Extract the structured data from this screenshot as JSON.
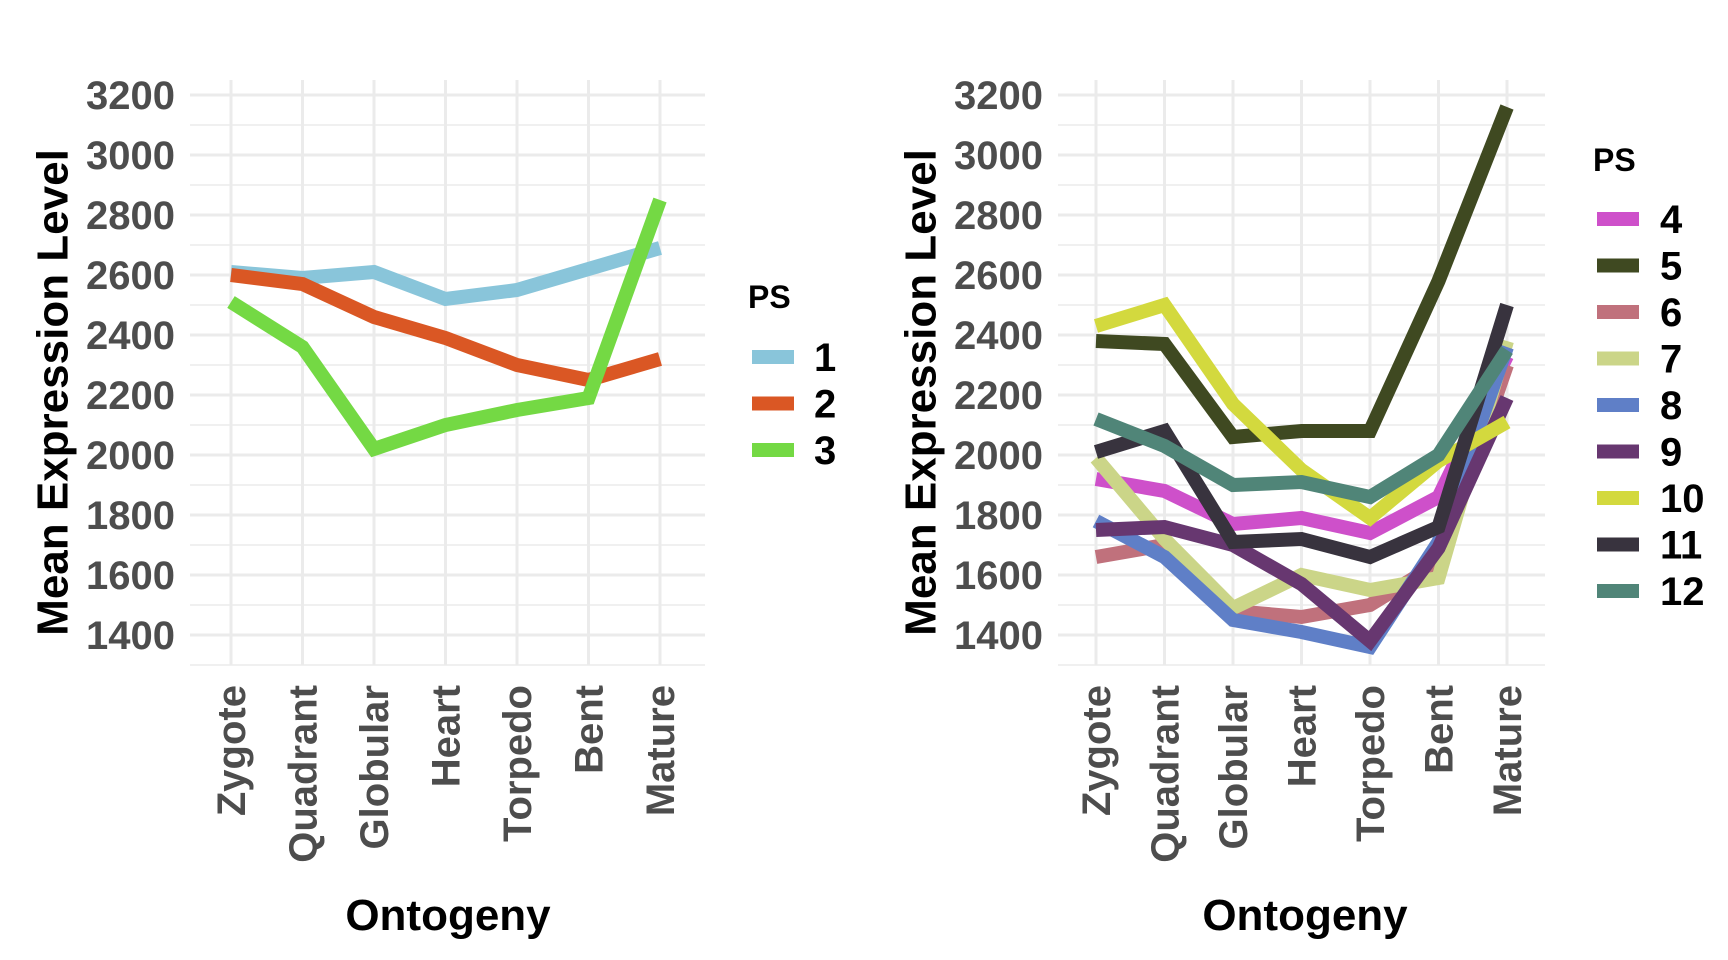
{
  "chart_data": [
    {
      "type": "line",
      "title": "",
      "xlabel": "Ontogeny",
      "ylabel": "Mean Expression Level",
      "categories": [
        "Zygote",
        "Quadrant",
        "Globular",
        "Heart",
        "Torpedo",
        "Bent",
        "Mature"
      ],
      "yticks": [
        "1400",
        "1600",
        "1800",
        "2000",
        "2200",
        "2400",
        "2600",
        "2800",
        "3000",
        "3200"
      ],
      "ylim": [
        1300,
        3250
      ],
      "grid": true,
      "legend_title": "PS",
      "legend_position": "right",
      "series": [
        {
          "name": "1",
          "color": "#89C5DA",
          "values": [
            2610,
            2590,
            2610,
            2520,
            2550,
            2620,
            2690
          ]
        },
        {
          "name": "2",
          "color": "#DA5724",
          "values": [
            2600,
            2570,
            2460,
            2390,
            2300,
            2250,
            2320
          ]
        },
        {
          "name": "3",
          "color": "#74D944",
          "values": [
            2510,
            2360,
            2020,
            2100,
            2150,
            2190,
            2850
          ]
        }
      ]
    },
    {
      "type": "line",
      "title": "",
      "xlabel": "Ontogeny",
      "ylabel": "Mean Expression Level",
      "categories": [
        "Zygote",
        "Quadrant",
        "Globular",
        "Heart",
        "Torpedo",
        "Bent",
        "Mature"
      ],
      "yticks": [
        "1400",
        "1600",
        "1800",
        "2000",
        "2200",
        "2400",
        "2600",
        "2800",
        "3000",
        "3200"
      ],
      "ylim": [
        1300,
        3250
      ],
      "grid": true,
      "legend_title": "PS",
      "legend_position": "right",
      "series": [
        {
          "name": "4",
          "color": "#CE50CA",
          "values": [
            1920,
            1880,
            1770,
            1790,
            1740,
            1860,
            2330
          ]
        },
        {
          "name": "5",
          "color": "#3F4921",
          "values": [
            2380,
            2370,
            2060,
            2080,
            2080,
            2580,
            3160
          ]
        },
        {
          "name": "6",
          "color": "#C0717C",
          "values": [
            1660,
            1700,
            1480,
            1460,
            1500,
            1640,
            2300
          ]
        },
        {
          "name": "7",
          "color": "#CBD588",
          "values": [
            1990,
            1720,
            1490,
            1600,
            1550,
            1590,
            2380
          ]
        },
        {
          "name": "8",
          "color": "#5F7FC7",
          "values": [
            1780,
            1660,
            1450,
            1410,
            1360,
            1710,
            2360
          ]
        },
        {
          "name": "9",
          "color": "#673770",
          "values": [
            1750,
            1760,
            1700,
            1570,
            1380,
            1690,
            2190
          ]
        },
        {
          "name": "10",
          "color": "#D3D93E",
          "values": [
            2430,
            2500,
            2170,
            1950,
            1790,
            1980,
            2110
          ]
        },
        {
          "name": "11",
          "color": "#38333E",
          "values": [
            2010,
            2080,
            1710,
            1720,
            1660,
            1760,
            2500
          ]
        },
        {
          "name": "12",
          "color": "#508578",
          "values": [
            2120,
            2030,
            1900,
            1910,
            1860,
            2000,
            2350
          ]
        }
      ]
    }
  ]
}
